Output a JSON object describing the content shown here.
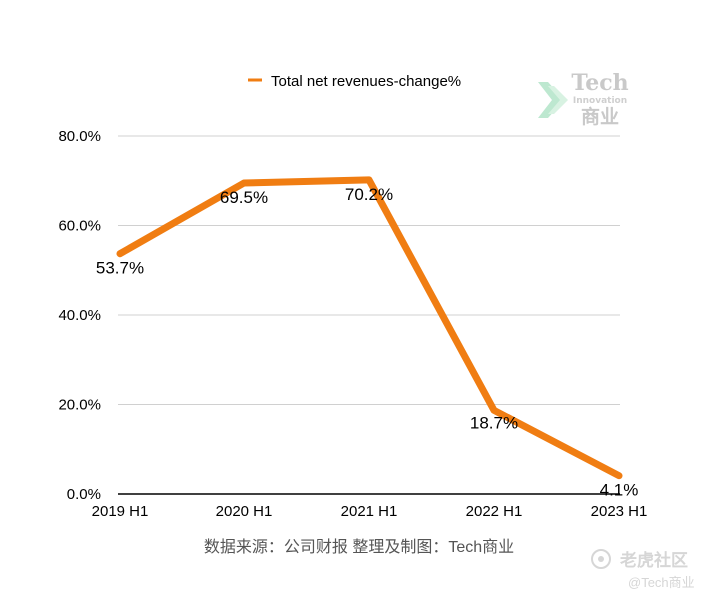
{
  "chart_data": {
    "type": "line",
    "categories": [
      "2019 H1",
      "2020 H1",
      "2021 H1",
      "2022 H1",
      "2023 H1"
    ],
    "series": [
      {
        "name": "Total net revenues-change%",
        "values": [
          53.7,
          69.5,
          70.2,
          18.7,
          4.1
        ],
        "color": "#f07d12"
      }
    ],
    "data_labels": [
      "53.7%",
      "69.5%",
      "70.2%",
      "18.7%",
      "4.1%"
    ],
    "y_ticks": [
      "0.0%",
      "20.0%",
      "40.0%",
      "60.0%",
      "80.0%"
    ],
    "y_tick_values": [
      0,
      20,
      40,
      60,
      80
    ],
    "ylim": [
      0,
      80
    ],
    "grid": true,
    "legend_position": "top"
  },
  "source_note": "数据来源：公司财报 整理及制图：Tech商业",
  "watermark": {
    "brand": "Tech",
    "tagline": "Innovation",
    "cn": "商业",
    "icon": "chevron-logo-icon"
  },
  "corner_watermark": {
    "site": "老虎社区",
    "handle": "@Tech商业",
    "icon": "tiger-logo-icon"
  },
  "colors": {
    "series": "#f07d12",
    "grid": "#d0d0d0",
    "axis": "#000000"
  }
}
